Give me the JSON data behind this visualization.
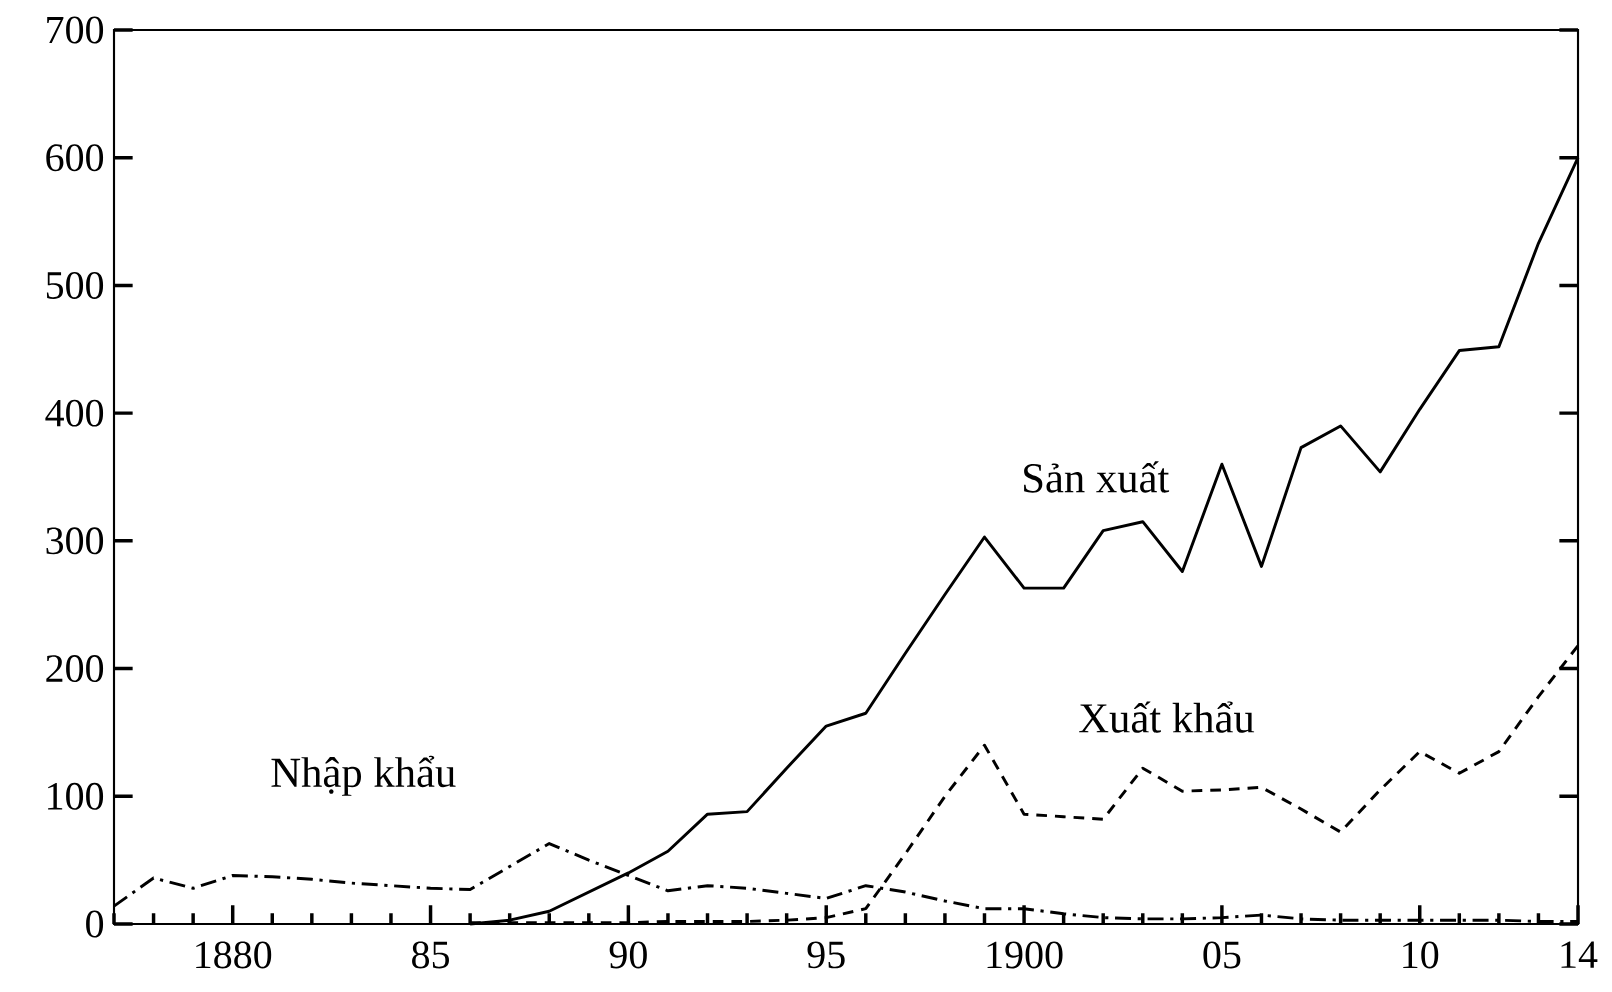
{
  "chart_data": {
    "type": "line",
    "xlim": [
      1877,
      1914
    ],
    "ylim": [
      0,
      700
    ],
    "xticks": [
      {
        "value": 1877,
        "label": null
      },
      {
        "value": 1878,
        "label": null
      },
      {
        "value": 1879,
        "label": null
      },
      1880,
      {
        "value": 1881,
        "label": null
      },
      {
        "value": 1882,
        "label": null
      },
      {
        "value": 1883,
        "label": null
      },
      {
        "value": 1884,
        "label": null
      },
      {
        "value": 1885,
        "label": "85"
      },
      {
        "value": 1886,
        "label": null
      },
      {
        "value": 1887,
        "label": null
      },
      {
        "value": 1888,
        "label": null
      },
      {
        "value": 1889,
        "label": null
      },
      {
        "value": 1890,
        "label": "90"
      },
      {
        "value": 1891,
        "label": null
      },
      {
        "value": 1892,
        "label": null
      },
      {
        "value": 1893,
        "label": null
      },
      {
        "value": 1894,
        "label": null
      },
      {
        "value": 1895,
        "label": "95"
      },
      {
        "value": 1896,
        "label": null
      },
      {
        "value": 1897,
        "label": null
      },
      {
        "value": 1898,
        "label": null
      },
      {
        "value": 1899,
        "label": null
      },
      1900,
      {
        "value": 1901,
        "label": null
      },
      {
        "value": 1902,
        "label": null
      },
      {
        "value": 1903,
        "label": null
      },
      {
        "value": 1904,
        "label": null
      },
      {
        "value": 1905,
        "label": "05"
      },
      {
        "value": 1906,
        "label": null
      },
      {
        "value": 1907,
        "label": null
      },
      {
        "value": 1908,
        "label": null
      },
      {
        "value": 1909,
        "label": null
      },
      {
        "value": 1910,
        "label": "10"
      },
      {
        "value": 1911,
        "label": null
      },
      {
        "value": 1912,
        "label": null
      },
      {
        "value": 1913,
        "label": null
      },
      {
        "value": 1914,
        "label": "14"
      }
    ],
    "yticks": [
      0,
      100,
      200,
      300,
      400,
      500,
      600,
      700
    ],
    "series": [
      {
        "name": "Sản xuất",
        "color": "#000000",
        "line_style": "solid",
        "x": [
          1886,
          1887,
          1888,
          1889,
          1890,
          1891,
          1892,
          1893,
          1894,
          1895,
          1896,
          1897,
          1898,
          1899,
          1900,
          1901,
          1902,
          1903,
          1904,
          1905,
          1906,
          1907,
          1908,
          1909,
          1910,
          1911,
          1912,
          1913,
          1914
        ],
        "values": [
          0,
          3,
          10,
          25,
          40,
          57,
          86,
          88,
          122,
          155,
          165,
          212,
          258,
          303,
          263,
          263,
          308,
          315,
          276,
          360,
          280,
          373,
          390,
          354,
          403,
          449,
          452,
          533,
          600
        ]
      },
      {
        "name": "Xuất khẩu",
        "color": "#000000",
        "line_style": "dashed",
        "x": [
          1886,
          1887,
          1888,
          1889,
          1890,
          1891,
          1892,
          1893,
          1894,
          1895,
          1896,
          1897,
          1898,
          1899,
          1900,
          1901,
          1902,
          1903,
          1904,
          1905,
          1906,
          1907,
          1908,
          1909,
          1910,
          1911,
          1912,
          1913,
          1914
        ],
        "values": [
          1,
          1,
          1,
          1,
          1,
          2,
          2,
          2,
          3,
          5,
          12,
          55,
          100,
          140,
          86,
          84,
          82,
          122,
          104,
          105,
          107,
          90,
          72,
          105,
          135,
          118,
          135,
          178,
          218
        ]
      },
      {
        "name": "Nhập khẩu",
        "color": "#000000",
        "line_style": "dashdot",
        "x": [
          1877,
          1878,
          1879,
          1880,
          1881,
          1882,
          1883,
          1884,
          1885,
          1886,
          1887,
          1888,
          1889,
          1890,
          1891,
          1892,
          1893,
          1894,
          1895,
          1896,
          1897,
          1898,
          1899,
          1900,
          1901,
          1902,
          1903,
          1904,
          1905,
          1906,
          1907,
          1908,
          1909,
          1910,
          1911,
          1912,
          1913,
          1914
        ],
        "values": [
          14,
          36,
          28,
          38,
          37,
          35,
          32,
          30,
          28,
          27,
          45,
          63,
          50,
          38,
          26,
          30,
          28,
          24,
          20,
          30,
          25,
          18,
          12,
          12,
          8,
          5,
          4,
          4,
          5,
          7,
          4,
          3,
          3,
          3,
          3,
          3,
          2,
          2
        ]
      }
    ]
  }
}
